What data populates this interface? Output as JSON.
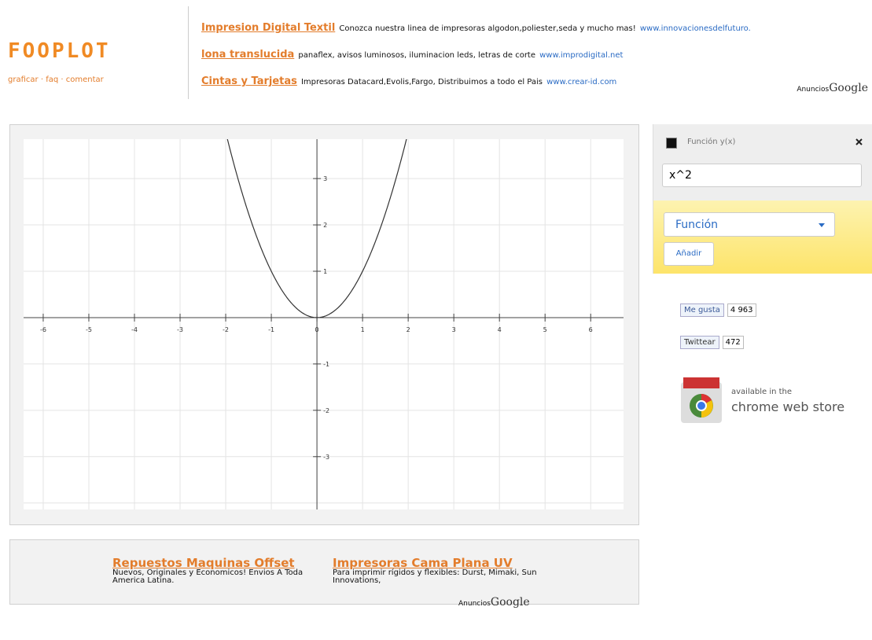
{
  "header": {
    "logo": "FOOPLOT",
    "nav": [
      "graficar",
      "faq",
      "comentar"
    ],
    "separator": "·",
    "ads": [
      {
        "title": "Impresion Digital Textil",
        "text": "Conozca nuestra linea de impresoras algodon,poliester,seda y mucho mas!",
        "url": "www.innovacionesdelfuturo."
      },
      {
        "title": "lona translucida",
        "text": "panaflex, avisos luminosos, iluminacion leds, letras de corte",
        "url": "www.improdigital.net"
      },
      {
        "title": "Cintas y Tarjetas",
        "text": "Impresoras Datacard,Evolis,Fargo, Distribuimos a todo el Pais",
        "url": "www.crear-id.com"
      }
    ],
    "ads_label": "Anuncios",
    "ads_brand": "Google"
  },
  "plot": {
    "function": "x^2",
    "xlim": [
      -6.43,
      6.72
    ],
    "ylim": [
      -4.14,
      3.85
    ],
    "xticks": [
      -6,
      -5,
      -4,
      -3,
      -2,
      -1,
      0,
      1,
      2,
      3,
      4,
      5,
      6
    ],
    "yticks": [
      -3,
      -2,
      -1,
      1,
      2,
      3
    ]
  },
  "panel": {
    "label": "Función y(x)",
    "input": "x^2",
    "select": "Función",
    "button": "Añadir"
  },
  "social": {
    "like": "Me gusta",
    "like_count": "4 963",
    "tweet": "Twittear",
    "tweet_count": "472",
    "store_line1": "available in the",
    "store_line2": "chrome web store"
  },
  "bottom_ads": {
    "items": [
      {
        "title": "Repuestos Maquinas Offset",
        "text": "Nuevos, Originales y Economicos! Envios A Toda America Latina."
      },
      {
        "title": "Impresoras Cama Plana UV",
        "text": "Para imprimir rígidos y flexibles: Durst, Mimaki, Sun Innovations,"
      }
    ],
    "label": "Anuncios",
    "brand": "Google"
  }
}
